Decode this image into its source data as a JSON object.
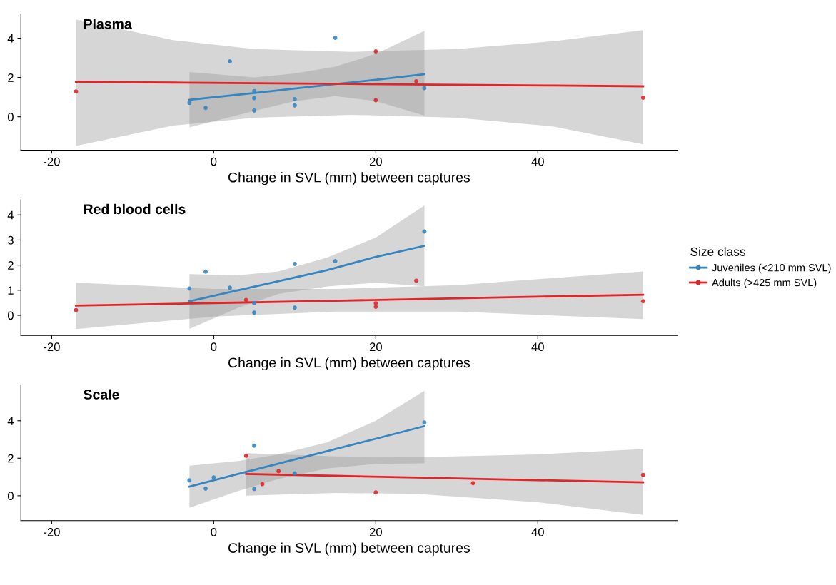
{
  "chart_data": [
    {
      "type": "scatter",
      "title": "Plasma",
      "xlabel": "Change in SVL (mm) between captures",
      "xlim": [
        -23.8,
        57.2
      ],
      "xticks": [
        -20,
        0,
        20,
        40
      ],
      "ylim": [
        -1.7,
        5.2
      ],
      "yticks": [
        0,
        2,
        4
      ],
      "grid": false,
      "legend": false,
      "marker": "circle",
      "series": [
        {
          "color": "#3585c0",
          "x": [
            -3,
            -1,
            2,
            5,
            5,
            5,
            10,
            10,
            15,
            26
          ],
          "values": [
            0.71,
            0.45,
            2.82,
            1.31,
            0.95,
            0.32,
            0.9,
            0.58,
            4.02,
            1.46
          ]
        },
        {
          "color": "#e0262a",
          "x": [
            -17,
            20,
            20,
            25,
            53
          ],
          "values": [
            1.29,
            3.33,
            0.84,
            1.81,
            0.97
          ]
        },
        {
          "type": "line",
          "line_style": "solid",
          "marker": "none",
          "color": "#3585c0",
          "x": [
            -3,
            5,
            10,
            15,
            20,
            26
          ],
          "values": [
            0.86,
            1.21,
            1.44,
            1.66,
            1.88,
            2.17
          ],
          "lower": [
            -0.54,
            0.3,
            0.8,
            1.05,
            0.8,
            0.06
          ],
          "upper": [
            2.28,
            2.0,
            2.2,
            2.55,
            3.2,
            4.37
          ]
        },
        {
          "type": "line",
          "line_style": "solid",
          "marker": "none",
          "color": "#e0262a",
          "x": [
            -17,
            -5,
            5,
            17,
            30,
            42,
            53
          ],
          "values": [
            1.78,
            1.74,
            1.71,
            1.67,
            1.63,
            1.59,
            1.55
          ],
          "lower": [
            -1.48,
            -0.45,
            -0.05,
            0.1,
            -0.05,
            -0.5,
            -1.4
          ],
          "upper": [
            4.95,
            3.9,
            3.45,
            3.3,
            3.45,
            3.85,
            4.41
          ]
        }
      ]
    },
    {
      "type": "scatter",
      "title": "Red blood cells",
      "xlabel": "Change in SVL (mm) between captures",
      "xlim": [
        -23.8,
        57.2
      ],
      "xticks": [
        -20,
        0,
        20,
        40
      ],
      "ylim": [
        -0.8,
        4.6
      ],
      "yticks": [
        0,
        1,
        2,
        3,
        4
      ],
      "grid": false,
      "legend": "right",
      "legend_title": "Size class",
      "marker": "circle",
      "series": [
        {
          "name": "Juveniles (<210 mm SVL)",
          "color": "#3585c0",
          "x": [
            -3,
            -1,
            2,
            5,
            5,
            10,
            10,
            15,
            26
          ],
          "values": [
            1.07,
            1.74,
            1.1,
            0.48,
            0.11,
            2.05,
            0.31,
            2.16,
            3.34
          ]
        },
        {
          "name": "Adults (>425 mm SVL)",
          "color": "#e0262a",
          "x": [
            -17,
            4,
            20,
            20,
            25,
            53
          ],
          "values": [
            0.21,
            0.61,
            0.48,
            0.34,
            1.38,
            0.56
          ]
        },
        {
          "type": "line",
          "line_style": "solid",
          "marker": "none",
          "color": "#3585c0",
          "x": [
            -3,
            3,
            8,
            14,
            20,
            26
          ],
          "values": [
            0.56,
            1.0,
            1.36,
            1.8,
            2.33,
            2.77
          ],
          "lower": [
            -0.54,
            0.3,
            0.85,
            1.15,
            1.3,
            1.16
          ],
          "upper": [
            1.64,
            1.6,
            1.75,
            2.3,
            3.1,
            4.38
          ]
        },
        {
          "type": "line",
          "line_style": "solid",
          "marker": "none",
          "color": "#e0262a",
          "x": [
            -17,
            0,
            15,
            30,
            53
          ],
          "values": [
            0.39,
            0.49,
            0.58,
            0.68,
            0.82
          ],
          "lower": [
            -0.55,
            -0.05,
            0.15,
            0.15,
            -0.15
          ],
          "upper": [
            1.3,
            1.05,
            1.05,
            1.2,
            1.75
          ]
        }
      ]
    },
    {
      "type": "scatter",
      "title": "Scale",
      "xlabel": "Change in SVL (mm) between captures",
      "xlim": [
        -23.8,
        57.2
      ],
      "xticks": [
        -20,
        0,
        20,
        40
      ],
      "ylim": [
        -1.33,
        5.9
      ],
      "yticks": [
        0,
        2,
        4
      ],
      "grid": false,
      "legend": false,
      "marker": "circle",
      "series": [
        {
          "color": "#3585c0",
          "x": [
            -3,
            -1,
            0,
            5,
            5,
            10,
            26
          ],
          "values": [
            0.82,
            0.38,
            0.98,
            2.67,
            0.36,
            1.2,
            3.91
          ]
        },
        {
          "color": "#e0262a",
          "x": [
            4,
            6,
            8,
            20,
            32,
            53
          ],
          "values": [
            2.13,
            0.62,
            1.31,
            0.18,
            0.67,
            1.11
          ]
        },
        {
          "type": "line",
          "line_style": "solid",
          "marker": "none",
          "color": "#3585c0",
          "x": [
            -3,
            3,
            8,
            14,
            20,
            26
          ],
          "values": [
            0.49,
            1.16,
            1.71,
            2.38,
            3.04,
            3.71
          ],
          "lower": [
            -0.64,
            0.25,
            0.9,
            1.45,
            1.7,
            1.73
          ],
          "upper": [
            1.6,
            1.85,
            2.2,
            2.85,
            4.0,
            5.6
          ]
        },
        {
          "type": "line",
          "line_style": "solid",
          "marker": "none",
          "color": "#e0262a",
          "x": [
            4,
            15,
            25,
            40,
            53
          ],
          "values": [
            1.16,
            1.06,
            0.97,
            0.83,
            0.71
          ],
          "lower": [
            0.0,
            0.15,
            0.1,
            -0.35,
            -1.02
          ],
          "upper": [
            2.27,
            2.1,
            2.05,
            2.2,
            2.49
          ]
        }
      ]
    }
  ]
}
